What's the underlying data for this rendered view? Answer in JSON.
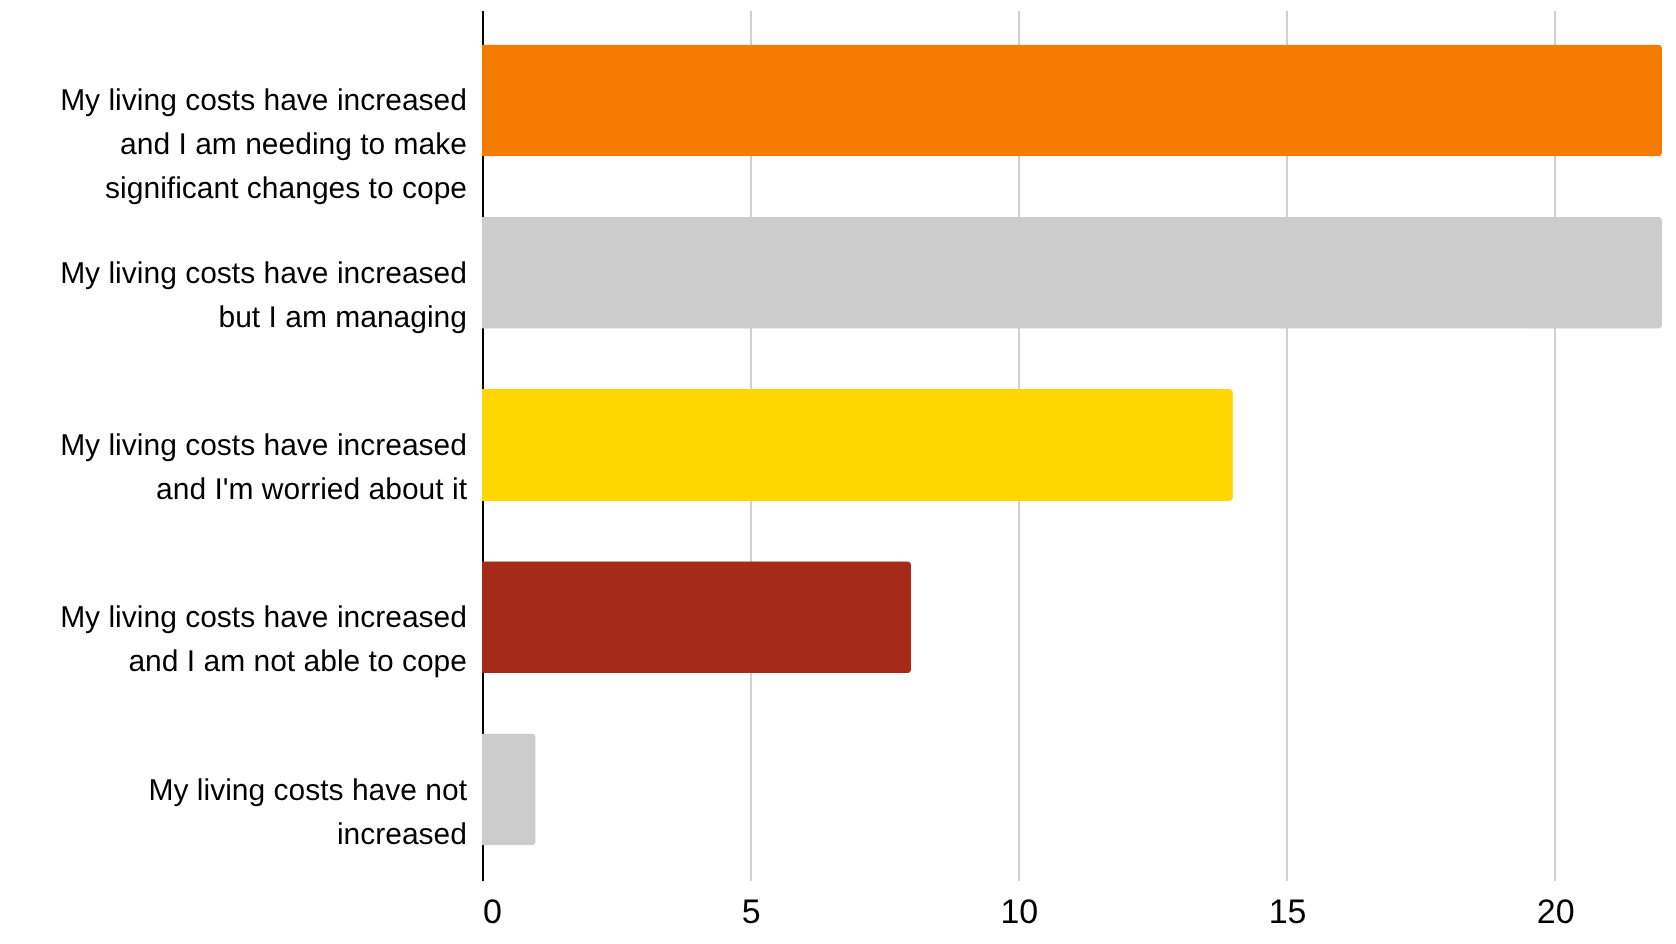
{
  "chart_data": {
    "type": "bar",
    "orientation": "horizontal",
    "categories": [
      "My living costs have increased and I am needing to make significant changes to cope",
      "My living costs have increased but I am managing",
      "My living costs have increased and I'm worried about it",
      "My living costs have increased and I am not able to cope",
      "My living costs have not increased"
    ],
    "values": [
      22,
      22,
      14,
      8,
      1
    ],
    "colors": [
      "#f57c00",
      "#cccccc",
      "#ffd600",
      "#a52a17",
      "#cccccc"
    ],
    "xlim": [
      0,
      22
    ],
    "xticks": [
      0,
      5,
      10,
      15,
      20
    ],
    "grid": "x"
  }
}
